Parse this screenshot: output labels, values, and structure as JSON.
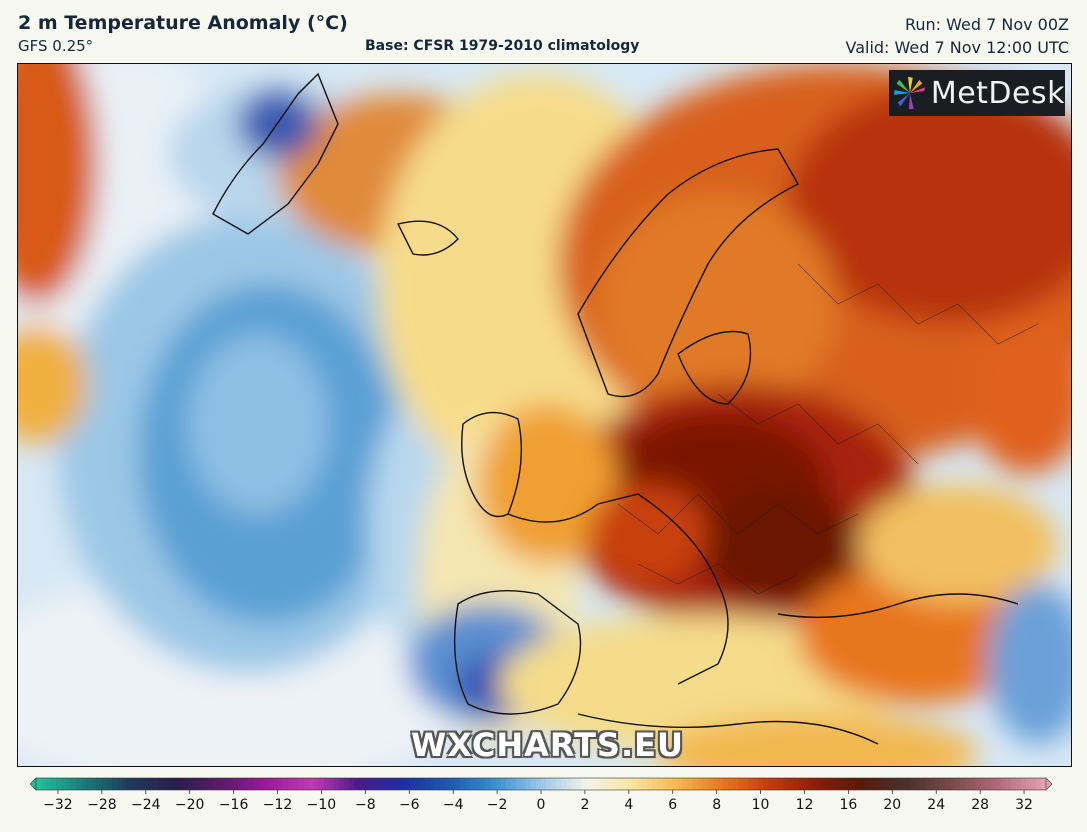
{
  "header": {
    "title": "2 m Temperature Anomaly (°C)",
    "model": "GFS 0.25°",
    "base": "Base: CFSR 1979-2010 climatology",
    "run": "Run: Wed 7 Nov 00Z",
    "valid": "Valid: Wed 7 Nov 12:00 UTC"
  },
  "logo": {
    "text": "MetDesk"
  },
  "watermark": "WXCHARTS.EU",
  "colorbar": {
    "ticks": [
      "−32",
      "−28",
      "−24",
      "−20",
      "−16",
      "−12",
      "−10",
      "−8",
      "−6",
      "−4",
      "−2",
      "0",
      "2",
      "4",
      "6",
      "8",
      "10",
      "12",
      "16",
      "20",
      "24",
      "28",
      "32"
    ],
    "colors": [
      "#1fbf9a",
      "#1a7a7a",
      "#1e3a5a",
      "#2a1f4a",
      "#5a1a6a",
      "#9b1a9b",
      "#c23ab0",
      "#4a1a8a",
      "#1f2fa0",
      "#1e5ab0",
      "#3a8fd0",
      "#9cc8e8",
      "#f2f4e8",
      "#f8e5a0",
      "#f5b84a",
      "#e8761a",
      "#c53a0c",
      "#8a1e0a",
      "#5a1a0a",
      "#4a3030",
      "#7a4a4a",
      "#b06a7a",
      "#e0a0b0"
    ]
  },
  "legend_meaning": "temperature anomaly colour scale in °C"
}
